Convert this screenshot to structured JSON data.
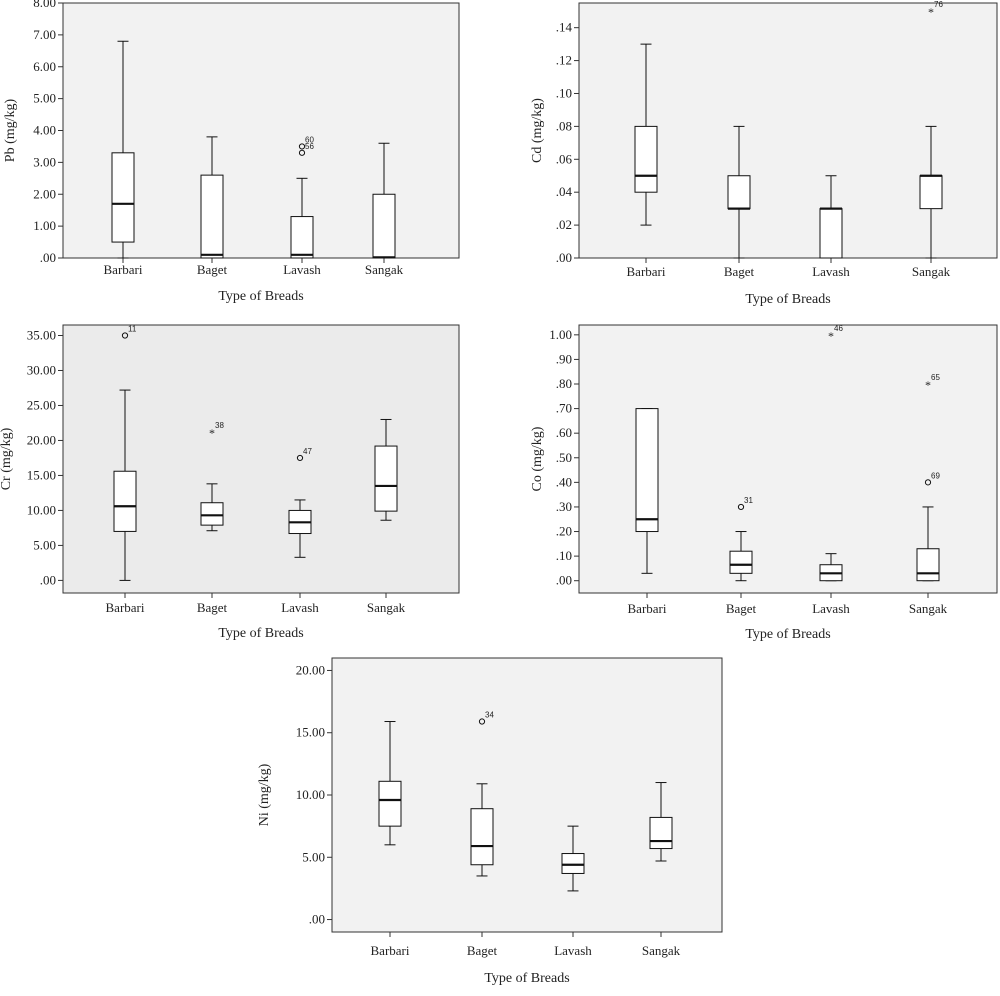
{
  "figure": {
    "xlabel": "Type of Breads",
    "categories": [
      "Barbari",
      "Baget",
      "Lavash",
      "Sangak"
    ]
  },
  "chart_data": [
    {
      "type": "box",
      "ylabel": "Pb (mg/kg)",
      "ylim": [
        0,
        8
      ],
      "yticks": [
        0,
        1,
        2,
        3,
        4,
        5,
        6,
        7,
        8
      ],
      "ytick_labels": [
        ".00",
        "1.00",
        "2.00",
        "3.00",
        "4.00",
        "5.00",
        "6.00",
        "7.00",
        "8.00"
      ],
      "background": "#f2f2f2",
      "categories": [
        "Barbari",
        "Baget",
        "Lavash",
        "Sangak"
      ],
      "xlabel": "Type of Breads",
      "boxes": [
        {
          "min": 0.0,
          "q1": 0.5,
          "median": 1.7,
          "q3": 3.3,
          "max": 6.8,
          "outliers": []
        },
        {
          "min": 0.0,
          "q1": 0.0,
          "median": 0.1,
          "q3": 2.6,
          "max": 3.8,
          "outliers": []
        },
        {
          "min": 0.0,
          "q1": 0.0,
          "median": 0.1,
          "q3": 1.3,
          "max": 2.5,
          "outliers": [
            {
              "value": 3.5,
              "label": "60",
              "marker": "circle"
            },
            {
              "value": 3.3,
              "label": "56",
              "marker": "circle"
            }
          ]
        },
        {
          "min": 0.0,
          "q1": 0.0,
          "median": 0.02,
          "q3": 2.0,
          "max": 3.6,
          "outliers": []
        }
      ]
    },
    {
      "type": "box",
      "ylabel": "Cd (mg/kg)",
      "ylim": [
        0,
        0.155
      ],
      "yticks": [
        0,
        0.02,
        0.04,
        0.06,
        0.08,
        0.1,
        0.12,
        0.14
      ],
      "ytick_labels": [
        ".00",
        ".02",
        ".04",
        ".06",
        ".08",
        ".10",
        ".12",
        ".14"
      ],
      "background": "#f2f2f2",
      "categories": [
        "Barbari",
        "Baget",
        "Lavash",
        "Sangak"
      ],
      "xlabel": "Type of Breads",
      "boxes": [
        {
          "min": 0.02,
          "q1": 0.04,
          "median": 0.05,
          "q3": 0.08,
          "max": 0.13,
          "outliers": []
        },
        {
          "min": 0.0,
          "q1": 0.03,
          "median": 0.03,
          "q3": 0.05,
          "max": 0.08,
          "outliers": []
        },
        {
          "min": 0.0,
          "q1": 0.0,
          "median": 0.03,
          "q3": 0.03,
          "max": 0.05,
          "outliers": []
        },
        {
          "min": 0.0,
          "q1": 0.03,
          "median": 0.05,
          "q3": 0.05,
          "max": 0.08,
          "outliers": [
            {
              "value": 0.15,
              "label": "76",
              "marker": "star"
            }
          ]
        }
      ]
    },
    {
      "type": "box",
      "ylabel": "Cr (mg/kg)",
      "ylim": [
        -1.8,
        36.5
      ],
      "yticks": [
        0,
        5,
        10,
        15,
        20,
        25,
        30,
        35
      ],
      "ytick_labels": [
        ".00",
        "5.00",
        "10.00",
        "15.00",
        "20.00",
        "25.00",
        "30.00",
        "35.00"
      ],
      "background": "#ebebeb",
      "categories": [
        "Barbari",
        "Baget",
        "Lavash",
        "Sangak"
      ],
      "xlabel": "Type of Breads",
      "boxes": [
        {
          "min": 0.0,
          "q1": 7.0,
          "median": 10.6,
          "q3": 15.6,
          "max": 27.2,
          "outliers": [
            {
              "value": 35.0,
              "label": "11",
              "marker": "circle"
            }
          ]
        },
        {
          "min": 7.1,
          "q1": 7.9,
          "median": 9.3,
          "q3": 11.1,
          "max": 13.8,
          "outliers": [
            {
              "value": 21.2,
              "label": "38",
              "marker": "star"
            }
          ]
        },
        {
          "min": 3.3,
          "q1": 6.7,
          "median": 8.3,
          "q3": 10.0,
          "max": 11.5,
          "outliers": [
            {
              "value": 17.5,
              "label": "47",
              "marker": "circle"
            }
          ]
        },
        {
          "min": 8.6,
          "q1": 9.9,
          "median": 13.5,
          "q3": 19.2,
          "max": 23.0,
          "outliers": []
        }
      ]
    },
    {
      "type": "box",
      "ylabel": "Co (mg/kg)",
      "ylim": [
        -0.05,
        1.04
      ],
      "yticks": [
        0,
        0.1,
        0.2,
        0.3,
        0.4,
        0.5,
        0.6,
        0.7,
        0.8,
        0.9,
        1.0
      ],
      "ytick_labels": [
        ".00",
        ".10",
        ".20",
        ".30",
        ".40",
        ".50",
        ".60",
        ".70",
        ".80",
        ".90",
        "1.00"
      ],
      "background": "#f2f2f2",
      "categories": [
        "Barbari",
        "Baget",
        "Lavash",
        "Sangak"
      ],
      "xlabel": "Type of Breads",
      "boxes": [
        {
          "min": 0.03,
          "q1": 0.2,
          "median": 0.25,
          "q3": 0.7,
          "max": 0.7,
          "outliers": []
        },
        {
          "min": 0.0,
          "q1": 0.03,
          "median": 0.065,
          "q3": 0.12,
          "max": 0.2,
          "outliers": [
            {
              "value": 0.3,
              "label": "31",
              "marker": "circle"
            }
          ]
        },
        {
          "min": 0.0,
          "q1": 0.0,
          "median": 0.03,
          "q3": 0.065,
          "max": 0.11,
          "outliers": [
            {
              "value": 1.0,
              "label": "46",
              "marker": "star"
            }
          ]
        },
        {
          "min": 0.0,
          "q1": 0.0,
          "median": 0.03,
          "q3": 0.13,
          "max": 0.3,
          "outliers": [
            {
              "value": 0.8,
              "label": "65",
              "marker": "star"
            },
            {
              "value": 0.4,
              "label": "69",
              "marker": "circle"
            }
          ]
        }
      ]
    },
    {
      "type": "box",
      "ylabel": "Ni (mg/kg)",
      "ylim": [
        -1.0,
        21.0
      ],
      "yticks": [
        0,
        5,
        10,
        15,
        20
      ],
      "ytick_labels": [
        ".00",
        "5.00",
        "10.00",
        "15.00",
        "20.00"
      ],
      "background": "#f2f2f2",
      "categories": [
        "Barbari",
        "Baget",
        "Lavash",
        "Sangak"
      ],
      "xlabel": "Type of Breads",
      "boxes": [
        {
          "min": 6.0,
          "q1": 7.5,
          "median": 9.6,
          "q3": 11.1,
          "max": 15.9,
          "outliers": []
        },
        {
          "min": 3.5,
          "q1": 4.4,
          "median": 5.9,
          "q3": 8.9,
          "max": 10.9,
          "outliers": [
            {
              "value": 15.9,
              "label": "34",
              "marker": "circle"
            }
          ]
        },
        {
          "min": 2.3,
          "q1": 3.7,
          "median": 4.4,
          "q3": 5.3,
          "max": 7.5,
          "outliers": []
        },
        {
          "min": 4.7,
          "q1": 5.7,
          "median": 6.3,
          "q3": 8.2,
          "max": 11.0,
          "outliers": []
        }
      ]
    }
  ]
}
